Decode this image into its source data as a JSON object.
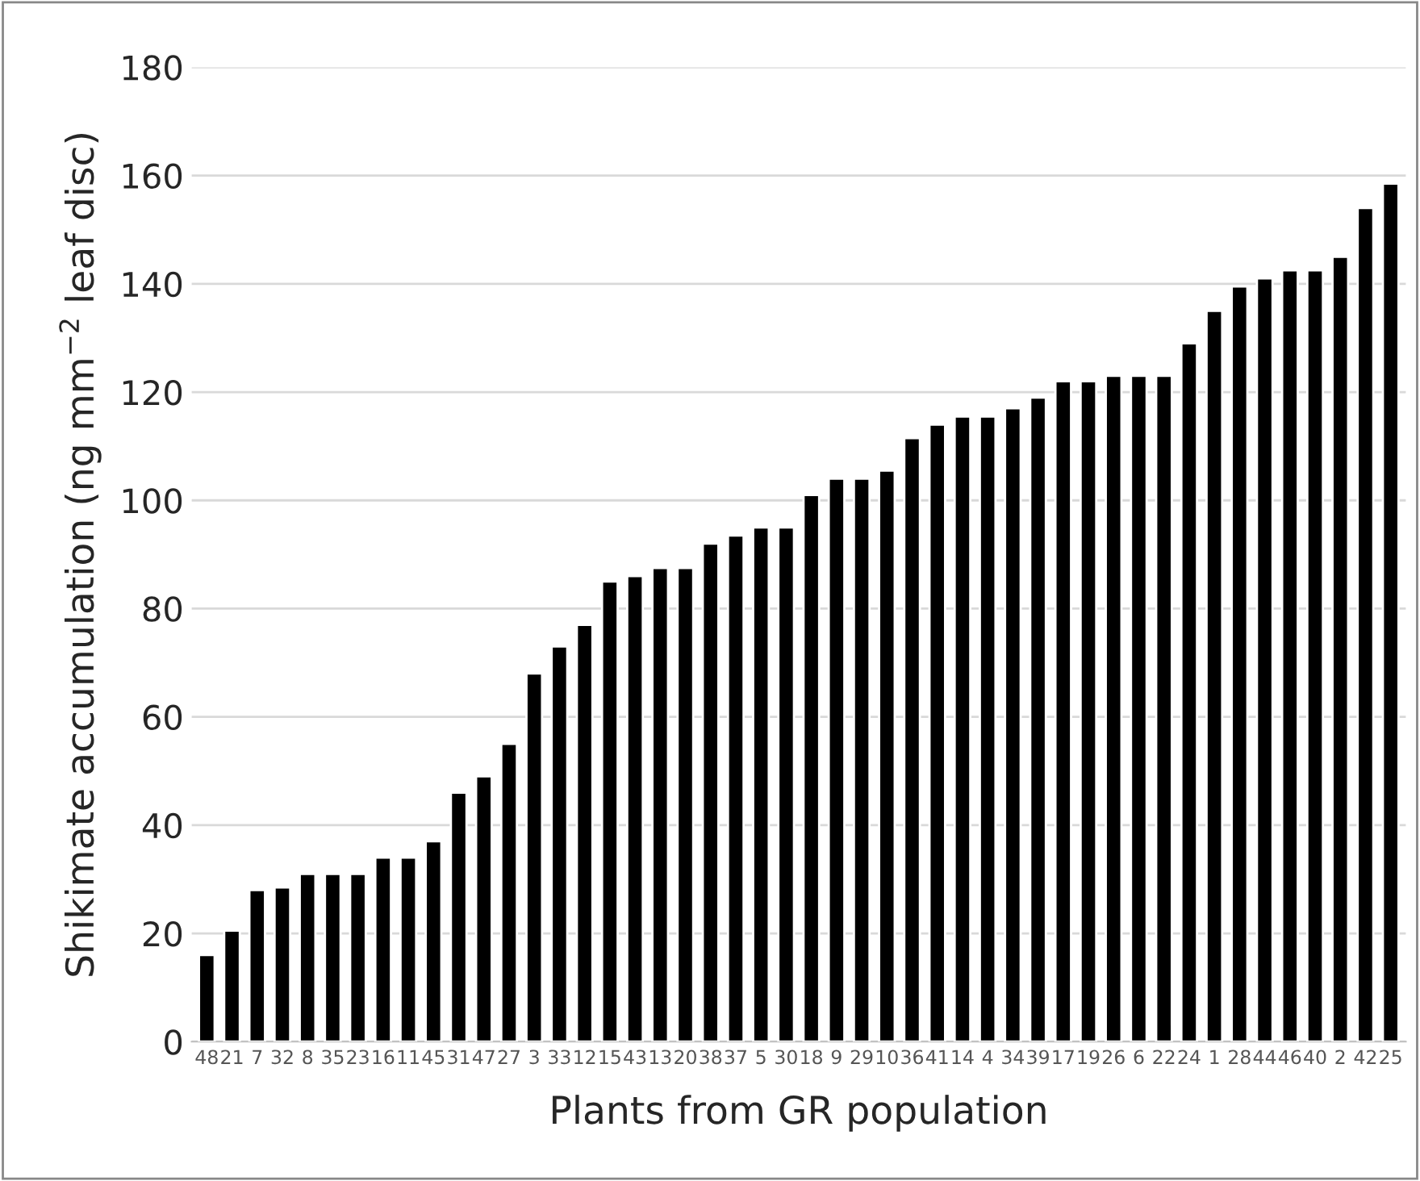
{
  "chart_data": {
    "type": "bar",
    "xlabel": "Plants from GR population",
    "ylabel": "Shikimate accumulation (ng mm$^{−2}$ leaf disc)",
    "categories": [
      "48",
      "21",
      "7",
      "32",
      "8",
      "35",
      "23",
      "16",
      "11",
      "45",
      "31",
      "47",
      "27",
      "3",
      "33",
      "12",
      "15",
      "43",
      "13",
      "20",
      "38",
      "37",
      "5",
      "30",
      "18",
      "9",
      "29",
      "10",
      "36",
      "41",
      "14",
      "4",
      "34",
      "39",
      "17",
      "19",
      "26",
      "6",
      "22",
      "24",
      "1",
      "28",
      "44",
      "46",
      "40",
      "2",
      "42",
      "25"
    ],
    "values": [
      16,
      20.5,
      28,
      28.5,
      31,
      31,
      31,
      34,
      34,
      37,
      46,
      49,
      55,
      68,
      73,
      77,
      85,
      86,
      87.5,
      87.5,
      92,
      93.5,
      95,
      95,
      101,
      104,
      104,
      105.5,
      111.5,
      114,
      115.5,
      115.5,
      117,
      119,
      122,
      122,
      123,
      123,
      123,
      129,
      135,
      139.5,
      141,
      142.5,
      142.5,
      145,
      154,
      158.5
    ],
    "color": "#000000",
    "ylim": [
      0,
      180
    ],
    "yticks": [
      0,
      20,
      40,
      60,
      80,
      100,
      120,
      140,
      160,
      180
    ],
    "grid": "y"
  }
}
